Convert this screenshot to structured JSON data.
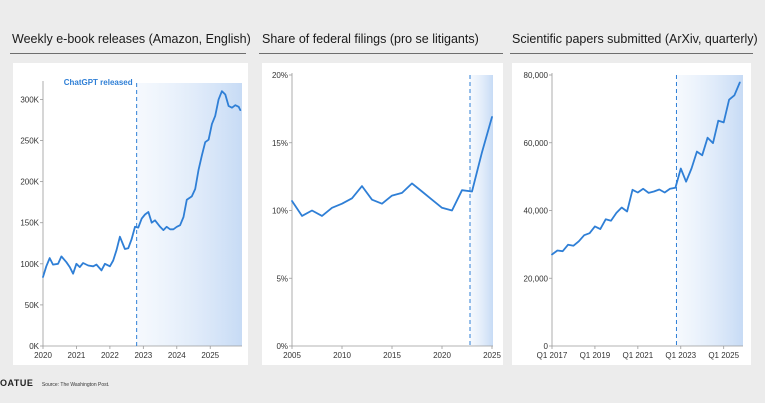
{
  "footer": {
    "brand": "OATUE",
    "source": "Source: The Washington Post."
  },
  "chart_data": [
    {
      "type": "line",
      "title": "Weekly e-book releases (Amazon, English)",
      "ylim": [
        0,
        320000
      ],
      "xlim": [
        2020,
        2025.95
      ],
      "y_ticks": [
        0,
        50000,
        100000,
        150000,
        200000,
        250000,
        300000
      ],
      "y_tick_labels": [
        "0K",
        "50K",
        "100K",
        "150K",
        "200K",
        "250K",
        "300K"
      ],
      "x_ticks": [
        2020,
        2021,
        2022,
        2023,
        2024,
        2025
      ],
      "x_tick_labels": [
        "2020",
        "2021",
        "2022",
        "2023",
        "2024",
        "2025"
      ],
      "event_x": 2022.8,
      "annotation": "ChatGPT released",
      "series": [
        {
          "x": [
            2020.0,
            2020.1,
            2020.2,
            2020.3,
            2020.45,
            2020.55,
            2020.7,
            2020.8,
            2020.9,
            2021.0,
            2021.1,
            2021.2,
            2021.35,
            2021.5,
            2021.6,
            2021.75,
            2021.85,
            2022.0,
            2022.1,
            2022.2,
            2022.3,
            2022.45,
            2022.55,
            2022.65,
            2022.75,
            2022.85,
            2022.95,
            2023.05,
            2023.15,
            2023.25,
            2023.35,
            2023.5,
            2023.6,
            2023.7,
            2023.8,
            2023.9,
            2024.0,
            2024.1,
            2024.2,
            2024.3,
            2024.45,
            2024.55,
            2024.65,
            2024.75,
            2024.85,
            2024.95,
            2025.05,
            2025.15,
            2025.25,
            2025.35,
            2025.45,
            2025.55,
            2025.65,
            2025.75,
            2025.85,
            2025.9
          ],
          "y": [
            84000,
            97000,
            107000,
            99000,
            100000,
            109000,
            102000,
            96000,
            88000,
            100000,
            96000,
            101000,
            98000,
            97000,
            99000,
            92000,
            100000,
            97000,
            104000,
            117000,
            133000,
            118000,
            119000,
            130000,
            145000,
            144000,
            155000,
            160000,
            163000,
            150000,
            153000,
            145000,
            141000,
            145000,
            142000,
            142000,
            145000,
            147000,
            157000,
            178000,
            182000,
            191000,
            214000,
            232000,
            248000,
            251000,
            270000,
            280000,
            300000,
            310000,
            306000,
            292000,
            290000,
            293000,
            291000,
            287000
          ]
        }
      ]
    },
    {
      "type": "line",
      "title": "Share of federal filings (pro se litigants)",
      "ylim": [
        0,
        20
      ],
      "xlim": [
        2005,
        2025.1
      ],
      "y_ticks": [
        0,
        5,
        10,
        15,
        20
      ],
      "y_tick_labels": [
        "0%",
        "5%",
        "10%",
        "15%",
        "20%"
      ],
      "x_ticks": [
        2005,
        2010,
        2015,
        2020,
        2025
      ],
      "x_tick_labels": [
        "2005",
        "2010",
        "2015",
        "2020",
        "2025"
      ],
      "event_x": 2022.8,
      "series": [
        {
          "x": [
            2005,
            2006,
            2007,
            2008,
            2009,
            2010,
            2011,
            2012,
            2013,
            2014,
            2015,
            2016,
            2017,
            2018,
            2019,
            2020,
            2021,
            2022,
            2023,
            2024,
            2025
          ],
          "y": [
            10.7,
            9.6,
            10.0,
            9.6,
            10.2,
            10.5,
            10.9,
            11.8,
            10.8,
            10.5,
            11.1,
            11.3,
            12.0,
            11.4,
            10.8,
            10.2,
            10.0,
            11.5,
            11.4,
            14.3,
            16.9
          ]
        }
      ]
    },
    {
      "type": "line",
      "title": "Scientific papers submitted (ArXiv, quarterly)",
      "ylim": [
        0,
        80000
      ],
      "xlim": [
        2017.0,
        2025.9
      ],
      "y_ticks": [
        0,
        20000,
        40000,
        60000,
        80000
      ],
      "y_tick_labels": [
        "0",
        "20,000",
        "40,000",
        "60,000",
        "80,000"
      ],
      "x_ticks": [
        2017.0,
        2019.0,
        2021.0,
        2023.0,
        2025.0
      ],
      "x_tick_labels": [
        "Q1 2017",
        "Q1 2019",
        "Q1 2021",
        "Q1 2023",
        "Q1 2025"
      ],
      "event_x": 2022.8,
      "series": [
        {
          "x": [
            2017.0,
            2017.25,
            2017.5,
            2017.75,
            2018.0,
            2018.25,
            2018.5,
            2018.75,
            2019.0,
            2019.25,
            2019.5,
            2019.75,
            2020.0,
            2020.25,
            2020.5,
            2020.75,
            2021.0,
            2021.25,
            2021.5,
            2021.75,
            2022.0,
            2022.25,
            2022.5,
            2022.75,
            2023.0,
            2023.25,
            2023.5,
            2023.75,
            2024.0,
            2024.25,
            2024.5,
            2024.75,
            2025.0,
            2025.25,
            2025.5,
            2025.75
          ],
          "y": [
            27000,
            28200,
            28000,
            29900,
            29600,
            30900,
            32700,
            33300,
            35300,
            34500,
            37400,
            37000,
            39300,
            40900,
            39700,
            46100,
            45300,
            46400,
            45200,
            45600,
            46200,
            45300,
            46400,
            46700,
            52400,
            48500,
            52400,
            57400,
            56300,
            61500,
            59900,
            66500,
            66000,
            72700,
            74000,
            77800
          ]
        }
      ]
    }
  ]
}
